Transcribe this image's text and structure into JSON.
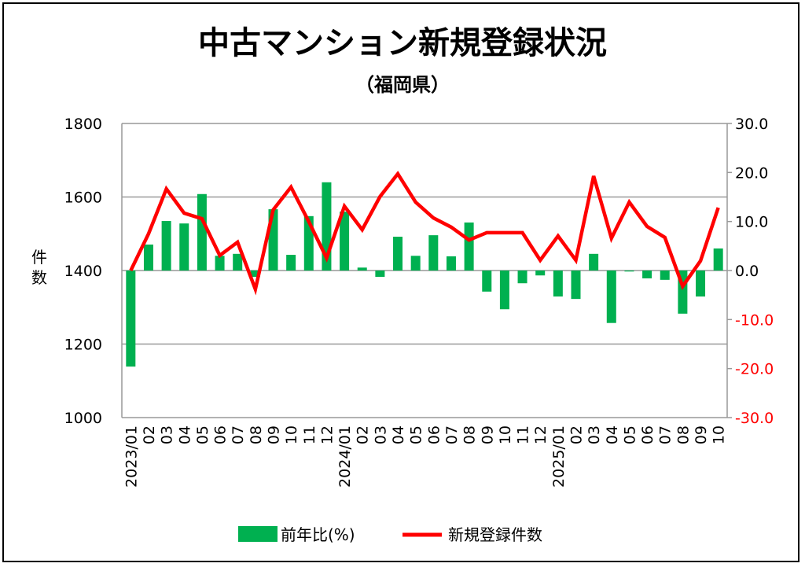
{
  "chart_data": {
    "type": "bar+line",
    "title": "中古マンション新規登録状況",
    "subtitle": "（福岡県）",
    "ylabel_left": "件数",
    "categories": [
      "2023/01",
      "02",
      "03",
      "04",
      "05",
      "06",
      "07",
      "08",
      "09",
      "10",
      "11",
      "12",
      "2024/01",
      "02",
      "03",
      "04",
      "05",
      "06",
      "07",
      "08",
      "09",
      "10",
      "11",
      "12",
      "2025/01",
      "02",
      "03",
      "04",
      "05",
      "06",
      "07",
      "08",
      "09",
      "10"
    ],
    "series": [
      {
        "name": "前年比(%)",
        "type": "bar",
        "axis": "right",
        "color": "#00b050",
        "values": [
          -19.6,
          5.3,
          10.1,
          9.6,
          15.6,
          3.0,
          3.4,
          -1.3,
          12.5,
          3.2,
          11.1,
          18.0,
          12.0,
          0.6,
          -1.3,
          6.9,
          3.0,
          7.2,
          2.9,
          9.8,
          -4.3,
          -7.9,
          -2.6,
          -1.0,
          -5.3,
          -5.8,
          3.4,
          -10.7,
          -0.2,
          -1.6,
          -1.9,
          -8.8,
          -5.3,
          4.5
        ]
      },
      {
        "name": "新規登録件数",
        "type": "line",
        "axis": "left",
        "color": "#ff0000",
        "values": [
          1400,
          1500,
          1622,
          1556,
          1541,
          1441,
          1477,
          1349,
          1565,
          1627,
          1533,
          1434,
          1575,
          1511,
          1601,
          1663,
          1586,
          1543,
          1518,
          1483,
          1503,
          1503,
          1503,
          1428,
          1494,
          1428,
          1657,
          1488,
          1586,
          1520,
          1490,
          1357,
          1426,
          1571
        ]
      }
    ],
    "left_axis": {
      "range": [
        1000,
        1800
      ],
      "ticks": [
        "1000",
        "1200",
        "1400",
        "1600",
        "1800"
      ]
    },
    "right_axis": {
      "range": [
        -30,
        30
      ],
      "ticks": [
        "-30.0",
        "-20.0",
        "-10.0",
        "0.0",
        "10.0",
        "20.0",
        "30.0"
      ],
      "negative_color": "#ff0000"
    },
    "grid": true,
    "legend": {
      "position": "bottom",
      "items": [
        "前年比(%)",
        "新規登録件数"
      ]
    }
  }
}
